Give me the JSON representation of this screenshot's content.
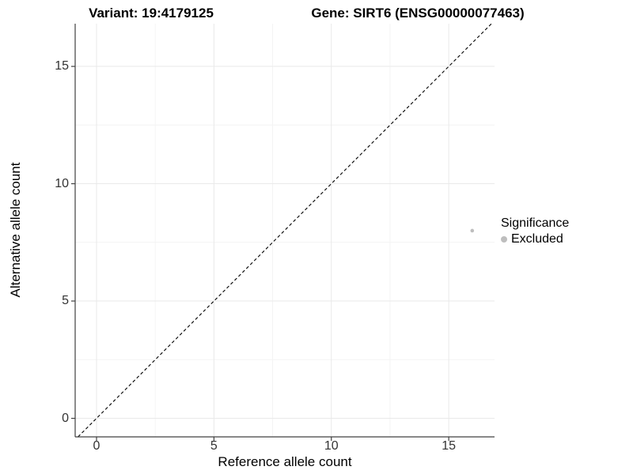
{
  "chart_data": {
    "type": "scatter",
    "title_left": "Variant: 19:4179125",
    "title_right": "Gene: SIRT6 (ENSG00000077463)",
    "xlabel": "Reference allele count",
    "ylabel": "Alternative allele count",
    "xlim": [
      -0.91,
      16.95
    ],
    "ylim": [
      -0.79,
      16.82
    ],
    "xticks": [
      0,
      5,
      10,
      15
    ],
    "yticks": [
      0,
      5,
      10,
      15
    ],
    "xticks_minor": [
      2.5,
      7.5,
      12.5
    ],
    "yticks_minor": [
      2.5,
      7.5,
      12.5
    ],
    "grid": "major+minor",
    "series": [
      {
        "name": "Excluded",
        "color": "#bebebe",
        "marker_radius": 2.3,
        "points": [
          {
            "x": 16,
            "y": 8
          }
        ]
      }
    ],
    "reference_line": {
      "kind": "identity",
      "equation": "y = x",
      "style": "dashed",
      "color": "#000000"
    },
    "legend": {
      "title": "Significance",
      "position": "right",
      "entries": [
        {
          "label": "Excluded",
          "color": "#bebebe"
        }
      ]
    },
    "colors": {
      "background": "#ffffff",
      "axis_line": "#404040",
      "tick_mark": "#404040",
      "tick_label": "#333333",
      "grid_major": "#e9e9e9",
      "grid_minor": "#f4f4f4"
    }
  }
}
